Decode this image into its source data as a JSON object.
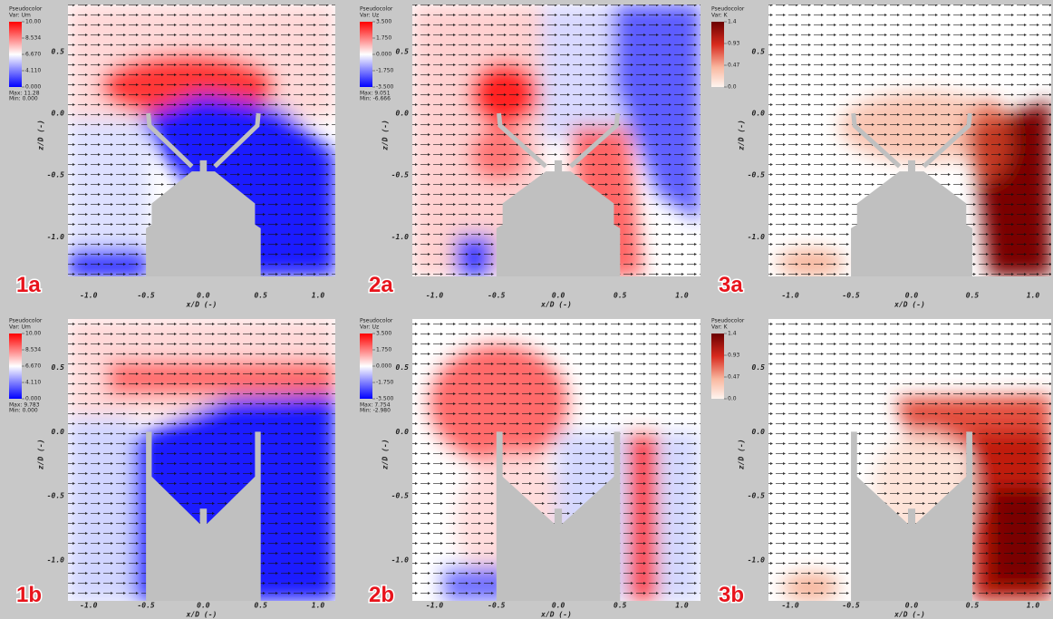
{
  "panels": [
    {
      "label": "1a",
      "legend": {
        "title": "Pseudocolor",
        "var": "Var: Um",
        "ticks": [
          "10.00",
          "8.534",
          "6.670",
          "4.110",
          "0.000"
        ],
        "max": "Max: 11.28",
        "min": "Min: 0.000"
      },
      "yticks": [
        "0.5",
        "0.0",
        "-0.5",
        "-1.0"
      ],
      "xticks": [
        "-1.0",
        "-0.5",
        "0.0",
        "0.5",
        "1.0"
      ],
      "xlabel": "x/D (-)",
      "ylabel": "z/D (-)"
    },
    {
      "label": "2a",
      "legend": {
        "title": "Pseudocolor",
        "var": "Var: Uz",
        "ticks": [
          "3.500",
          "1.750",
          "0.000",
          "-1.750",
          "-3.500"
        ],
        "max": "Max: 9.051",
        "min": "Min: -6.666"
      },
      "yticks": [
        "0.5",
        "0.0",
        "-0.5",
        "-1.0"
      ],
      "xticks": [
        "-1.0",
        "-0.5",
        "0.0",
        "0.5",
        "1.0"
      ],
      "xlabel": "x/D (-)",
      "ylabel": "z/D (-)"
    },
    {
      "label": "3a",
      "legend": {
        "title": "Pseudocolor",
        "var": "Var: K",
        "ticks": [
          "1.4",
          "0.93",
          "0.47",
          "0.0"
        ]
      },
      "yticks": [
        "0.5",
        "0.0",
        "-0.5",
        "-1.0"
      ],
      "xticks": [
        "-1.0",
        "-0.5",
        "0.0",
        "0.5",
        "1.0"
      ],
      "xlabel": "x/D (-)",
      "ylabel": "z/D (-)"
    },
    {
      "label": "1b",
      "legend": {
        "title": "Pseudocolor",
        "var": "Var: Um",
        "ticks": [
          "10.00",
          "8.534",
          "6.670",
          "4.110",
          "0.000"
        ],
        "max": "Max: 9.783",
        "min": "Min: 0.000"
      },
      "yticks": [
        "0.5",
        "0.0",
        "-0.5",
        "-1.0"
      ],
      "xticks": [
        "-1.0",
        "-0.5",
        "0.0",
        "0.5",
        "1.0"
      ],
      "xlabel": "x/D (-)",
      "ylabel": "z/D (-)"
    },
    {
      "label": "2b",
      "legend": {
        "title": "Pseudocolor",
        "var": "Var: Uz",
        "ticks": [
          "3.500",
          "1.750",
          "0.000",
          "-1.750",
          "-3.500"
        ],
        "max": "Max: 7.754",
        "min": "Min: -2.980"
      },
      "yticks": [
        "0.5",
        "0.0",
        "-0.5",
        "-1.0"
      ],
      "xticks": [
        "-1.0",
        "-0.5",
        "0.0",
        "0.5",
        "1.0"
      ],
      "xlabel": "x/D (-)",
      "ylabel": "z/D (-)"
    },
    {
      "label": "3b",
      "legend": {
        "title": "Pseudocolor",
        "var": "Var: K",
        "ticks": [
          "1.4",
          "0.93",
          "0.47",
          "0.0"
        ]
      },
      "yticks": [
        "0.5",
        "0.0",
        "-0.5",
        "-1.0"
      ],
      "xticks": [
        "-1.0",
        "-0.5",
        "0.0",
        "0.5",
        "1.0"
      ],
      "xlabel": "x/D (-)",
      "ylabel": "z/D (-)"
    }
  ]
}
